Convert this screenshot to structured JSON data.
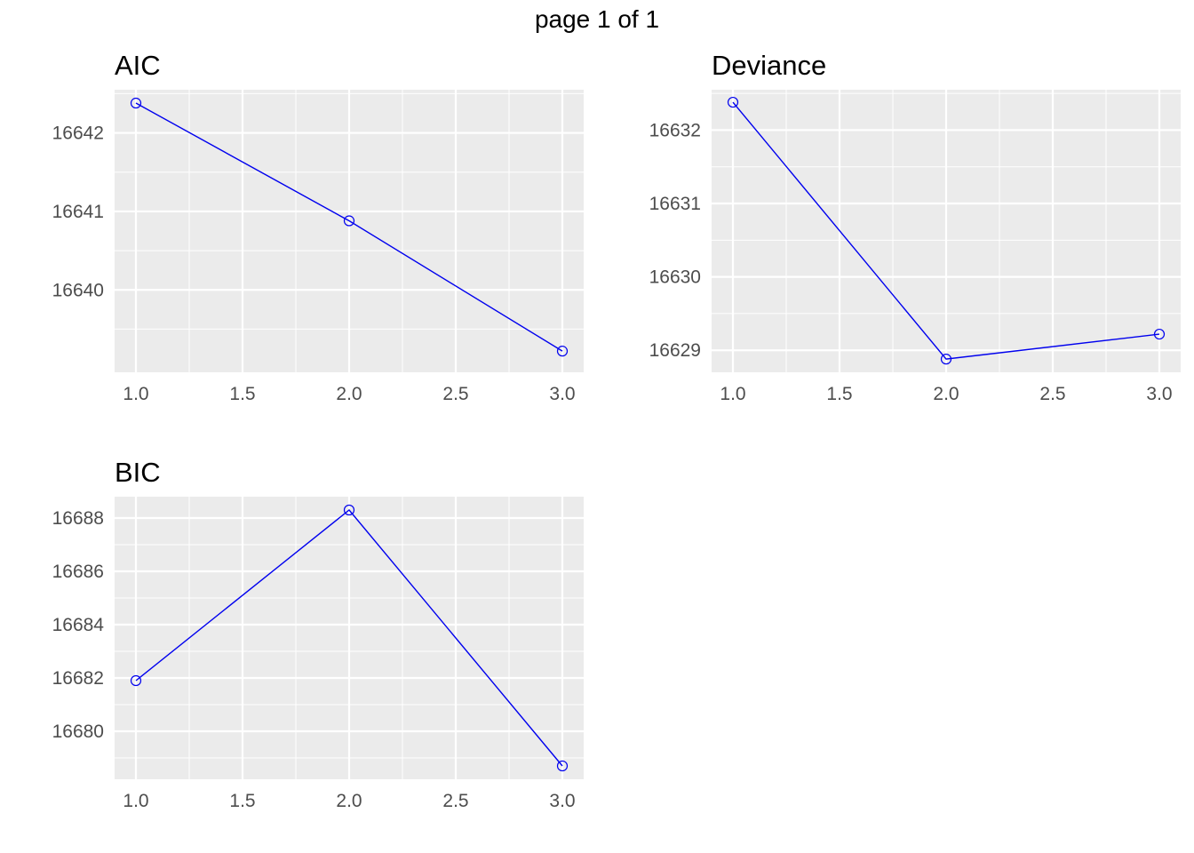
{
  "header": {
    "page_label": "page 1 of 1"
  },
  "colors": {
    "line": "#0000ee",
    "panel_bg": "#ebebeb",
    "grid": "#ffffff",
    "tick_text": "#4d4d4d"
  },
  "chart_data": [
    {
      "type": "line",
      "title": "AIC",
      "x": [
        1,
        2,
        3
      ],
      "y": [
        16642.38,
        16640.88,
        16639.22
      ],
      "xlim": [
        0.9,
        3.1
      ],
      "ylim": [
        16638.95,
        16642.55
      ],
      "xticks": [
        1,
        1.5,
        2,
        2.5,
        3
      ],
      "xtick_labels": [
        "1.0",
        "1.5",
        "2.0",
        "2.5",
        "3.0"
      ],
      "yticks": [
        16640,
        16641,
        16642
      ],
      "ytick_labels": [
        "16640",
        "16641",
        "16642"
      ],
      "grid": true
    },
    {
      "type": "line",
      "title": "Deviance",
      "x": [
        1,
        2,
        3
      ],
      "y": [
        16632.38,
        16628.88,
        16629.22
      ],
      "xlim": [
        0.9,
        3.1
      ],
      "ylim": [
        16628.7,
        16632.55
      ],
      "xticks": [
        1,
        1.5,
        2,
        2.5,
        3
      ],
      "xtick_labels": [
        "1.0",
        "1.5",
        "2.0",
        "2.5",
        "3.0"
      ],
      "yticks": [
        16629,
        16630,
        16631,
        16632
      ],
      "ytick_labels": [
        "16629",
        "16630",
        "16631",
        "16632"
      ],
      "grid": true
    },
    {
      "type": "line",
      "title": "BIC",
      "x": [
        1,
        2,
        3
      ],
      "y": [
        16681.9,
        16688.3,
        16678.7
      ],
      "xlim": [
        0.9,
        3.1
      ],
      "ylim": [
        16678.2,
        16688.8
      ],
      "xticks": [
        1,
        1.5,
        2,
        2.5,
        3
      ],
      "xtick_labels": [
        "1.0",
        "1.5",
        "2.0",
        "2.5",
        "3.0"
      ],
      "yticks": [
        16680,
        16682,
        16684,
        16686,
        16688
      ],
      "ytick_labels": [
        "16680",
        "16682",
        "16684",
        "16686",
        "16688"
      ],
      "grid": true
    }
  ]
}
